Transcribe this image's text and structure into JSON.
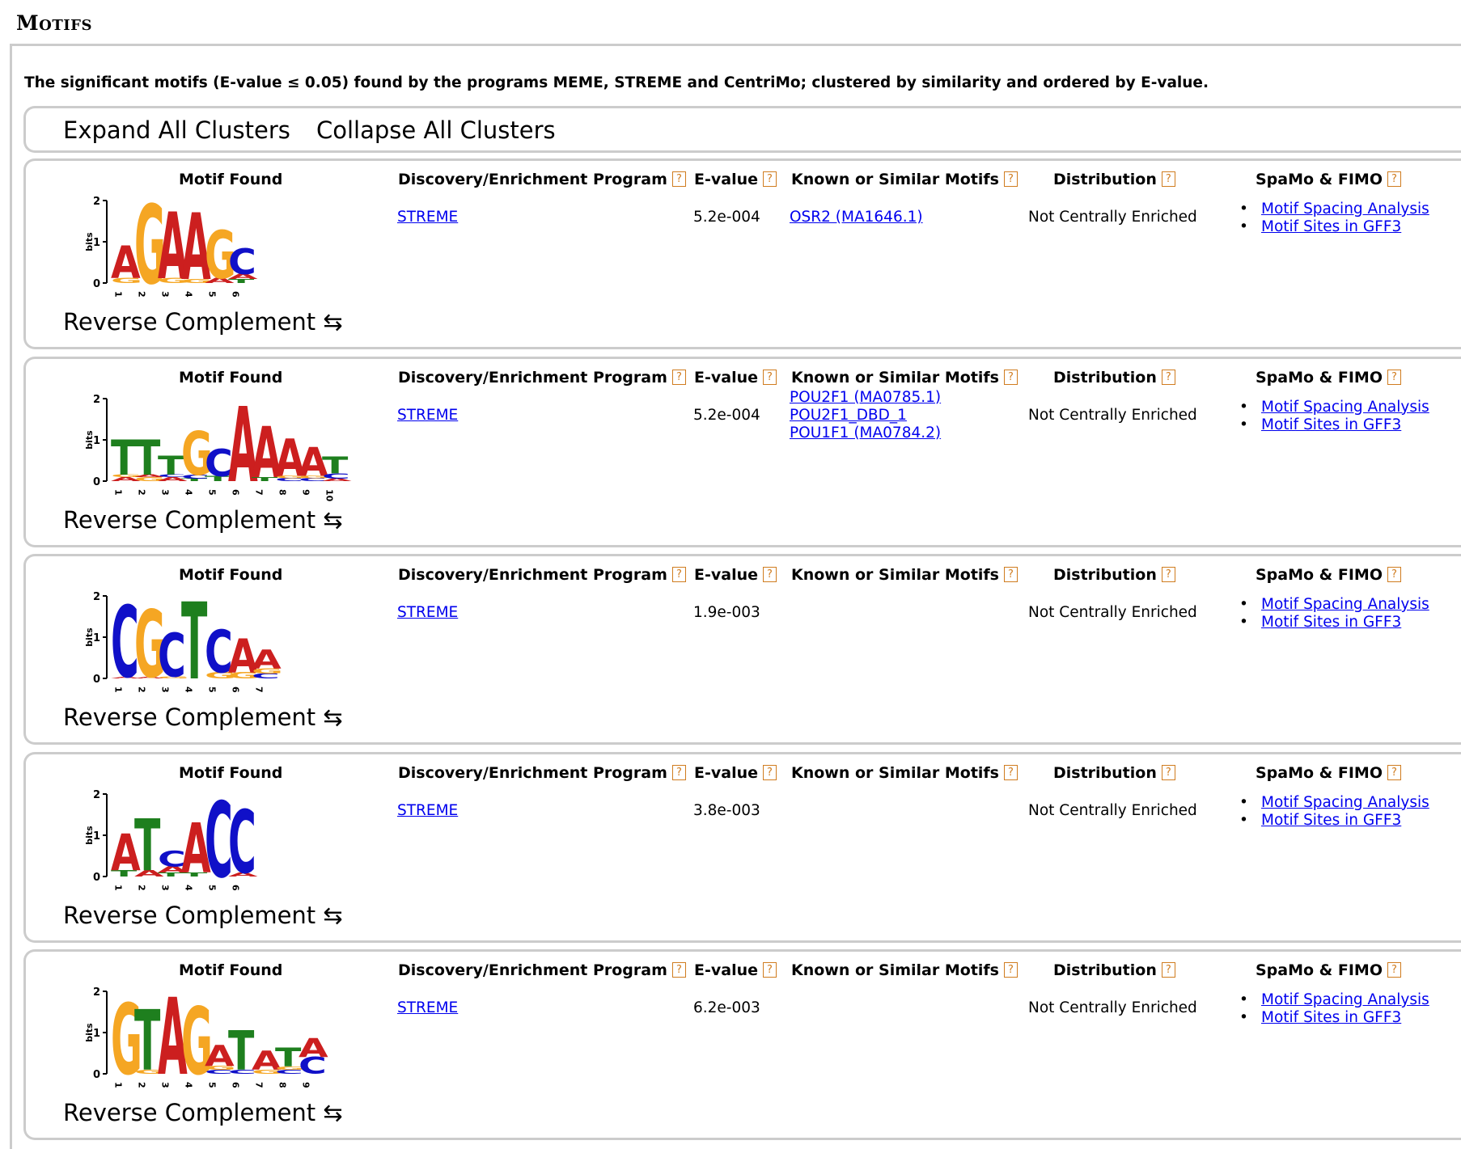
{
  "page": {
    "section_title": "Motifs",
    "intro": "The significant motifs (E-value ≤ 0.05) found by the programs MEME, STREME and CentriMo; clustered by similarity and ordered by E-value.",
    "expand_all": "Expand All Clusters",
    "collapse_all": "Collapse All Clusters"
  },
  "headers": {
    "motif_found": "Motif Found",
    "program": "Discovery/Enrichment Program",
    "evalue": "E-value",
    "known": "Known or Similar Motifs",
    "distribution": "Distribution",
    "spamo": "SpaMo & FIMO",
    "help_icon": "?"
  },
  "colors": {
    "A": "#cc1f1f",
    "C": "#1010c8",
    "G": "#f5a623",
    "T": "#1e7f1e",
    "help": "#d07c1f",
    "link": "#0000ee"
  },
  "logo_axis": {
    "ylabel": "bits",
    "ticks": [
      "0",
      "1",
      "2"
    ]
  },
  "clusters": [
    {
      "program": "STREME",
      "evalue": "5.2e-004",
      "known": [
        "OSR2 (MA1646.1)"
      ],
      "distribution": "Not Centrally Enriched",
      "links": [
        "Motif Spacing Analysis",
        "Motif Sites in GFF3"
      ],
      "reverse_complement": "Reverse Complement ⇆",
      "logo": [
        {
          "pos": "1",
          "stack": [
            [
              "G",
              0.12
            ],
            [
              "A",
              0.78
            ]
          ]
        },
        {
          "pos": "2",
          "stack": [
            [
              "G",
              1.9
            ]
          ]
        },
        {
          "pos": "3",
          "stack": [
            [
              "G",
              0.12
            ],
            [
              "A",
              1.6
            ]
          ]
        },
        {
          "pos": "4",
          "stack": [
            [
              "G",
              0.1
            ],
            [
              "A",
              1.6
            ]
          ]
        },
        {
          "pos": "5",
          "stack": [
            [
              "A",
              0.12
            ],
            [
              "G",
              1.15
            ]
          ]
        },
        {
          "pos": "6",
          "stack": [
            [
              "T",
              0.1
            ],
            [
              "A",
              0.12
            ],
            [
              "C",
              0.62
            ]
          ]
        }
      ]
    },
    {
      "program": "STREME",
      "evalue": "5.2e-004",
      "known": [
        "POU2F1 (MA0785.1)",
        "POU2F1_DBD_1",
        "POU1F1 (MA0784.2)"
      ],
      "distribution": "Not Centrally Enriched",
      "links": [
        "Motif Spacing Analysis",
        "Motif Sites in GFF3"
      ],
      "reverse_complement": "Reverse Complement ⇆",
      "logo": [
        {
          "pos": "1",
          "stack": [
            [
              "A",
              0.1
            ],
            [
              "G",
              0.06
            ],
            [
              "T",
              0.85
            ]
          ]
        },
        {
          "pos": "2",
          "stack": [
            [
              "G",
              0.1
            ],
            [
              "A",
              0.06
            ],
            [
              "T",
              0.85
            ]
          ]
        },
        {
          "pos": "3",
          "stack": [
            [
              "A",
              0.1
            ],
            [
              "C",
              0.06
            ],
            [
              "T",
              0.45
            ]
          ]
        },
        {
          "pos": "4",
          "stack": [
            [
              "T",
              0.06
            ],
            [
              "C",
              0.1
            ],
            [
              "G",
              1.05
            ]
          ]
        },
        {
          "pos": "5",
          "stack": [
            [
              "T",
              0.12
            ],
            [
              "C",
              0.65
            ]
          ]
        },
        {
          "pos": "6",
          "stack": [
            [
              "A",
              1.8
            ]
          ]
        },
        {
          "pos": "7",
          "stack": [
            [
              "T",
              0.1
            ],
            [
              "A",
              1.22
            ]
          ]
        },
        {
          "pos": "8",
          "stack": [
            [
              "C",
              0.07
            ],
            [
              "G",
              0.06
            ],
            [
              "A",
              0.9
            ]
          ]
        },
        {
          "pos": "9",
          "stack": [
            [
              "C",
              0.07
            ],
            [
              "G",
              0.06
            ],
            [
              "A",
              0.7
            ]
          ]
        },
        {
          "pos": "10",
          "stack": [
            [
              "A",
              0.06
            ],
            [
              "C",
              0.13
            ],
            [
              "T",
              0.4
            ]
          ]
        }
      ]
    },
    {
      "program": "STREME",
      "evalue": "1.9e-003",
      "known": [],
      "distribution": "Not Centrally Enriched",
      "links": [
        "Motif Spacing Analysis",
        "Motif Sites in GFF3"
      ],
      "reverse_complement": "Reverse Complement ⇆",
      "logo": [
        {
          "pos": "1",
          "stack": [
            [
              "A",
              0.04
            ],
            [
              "C",
              1.72
            ]
          ]
        },
        {
          "pos": "2",
          "stack": [
            [
              "A",
              0.04
            ],
            [
              "G",
              1.62
            ]
          ]
        },
        {
          "pos": "3",
          "stack": [
            [
              "G",
              0.05
            ],
            [
              "C",
              1.05
            ]
          ]
        },
        {
          "pos": "4",
          "stack": [
            [
              "T",
              1.85
            ]
          ]
        },
        {
          "pos": "5",
          "stack": [
            [
              "G",
              0.15
            ],
            [
              "C",
              1.02
            ]
          ]
        },
        {
          "pos": "6",
          "stack": [
            [
              "G",
              0.15
            ],
            [
              "A",
              0.82
            ]
          ]
        },
        {
          "pos": "7",
          "stack": [
            [
              "C",
              0.12
            ],
            [
              "G",
              0.12
            ],
            [
              "A",
              0.45
            ]
          ]
        }
      ]
    },
    {
      "program": "STREME",
      "evalue": "3.8e-003",
      "known": [],
      "distribution": "Not Centrally Enriched",
      "links": [
        "Motif Spacing Analysis",
        "Motif Sites in GFF3"
      ],
      "reverse_complement": "Reverse Complement ⇆",
      "logo": [
        {
          "pos": "1",
          "stack": [
            [
              "T",
              0.15
            ],
            [
              "A",
              0.88
            ]
          ]
        },
        {
          "pos": "2",
          "stack": [
            [
              "A",
              0.15
            ],
            [
              "T",
              1.25
            ]
          ]
        },
        {
          "pos": "3",
          "stack": [
            [
              "T",
              0.1
            ],
            [
              "A",
              0.15
            ],
            [
              "C",
              0.38
            ]
          ]
        },
        {
          "pos": "4",
          "stack": [
            [
              "T",
              0.1
            ],
            [
              "A",
              1.2
            ]
          ]
        },
        {
          "pos": "5",
          "stack": [
            [
              "C",
              1.82
            ]
          ]
        },
        {
          "pos": "6",
          "stack": [
            [
              "A",
              0.1
            ],
            [
              "C",
              1.52
            ]
          ]
        }
      ]
    },
    {
      "program": "STREME",
      "evalue": "6.2e-003",
      "known": [],
      "distribution": "Not Centrally Enriched",
      "links": [
        "Motif Spacing Analysis",
        "Motif Sites in GFF3"
      ],
      "reverse_complement": "Reverse Complement ⇆",
      "logo": [
        {
          "pos": "1",
          "stack": [
            [
              "G",
              1.7
            ]
          ]
        },
        {
          "pos": "2",
          "stack": [
            [
              "G",
              0.1
            ],
            [
              "T",
              1.45
            ]
          ]
        },
        {
          "pos": "3",
          "stack": [
            [
              "A",
              1.85
            ]
          ]
        },
        {
          "pos": "4",
          "stack": [
            [
              "G",
              1.62
            ]
          ]
        },
        {
          "pos": "5",
          "stack": [
            [
              "C",
              0.1
            ],
            [
              "G",
              0.1
            ],
            [
              "A",
              0.5
            ]
          ]
        },
        {
          "pos": "6",
          "stack": [
            [
              "C",
              0.1
            ],
            [
              "T",
              0.95
            ]
          ]
        },
        {
          "pos": "7",
          "stack": [
            [
              "G",
              0.1
            ],
            [
              "A",
              0.45
            ]
          ]
        },
        {
          "pos": "8",
          "stack": [
            [
              "C",
              0.1
            ],
            [
              "G",
              0.08
            ],
            [
              "T",
              0.45
            ]
          ]
        },
        {
          "pos": "9",
          "stack": [
            [
              "C",
              0.4
            ],
            [
              "A",
              0.45
            ]
          ]
        }
      ]
    }
  ]
}
